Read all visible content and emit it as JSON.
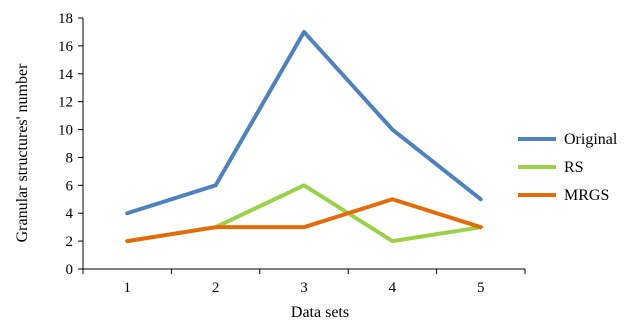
{
  "chart_data": {
    "type": "line",
    "x": [
      1,
      2,
      3,
      4,
      5
    ],
    "categories": [
      "1",
      "2",
      "3",
      "4",
      "5"
    ],
    "series": [
      {
        "name": "Original",
        "values": [
          4,
          6,
          17,
          10,
          5
        ],
        "color": "#4F81BD"
      },
      {
        "name": "RS",
        "values": [
          2,
          3,
          6,
          2,
          3
        ],
        "color": "#9BD14A"
      },
      {
        "name": "MRGS",
        "values": [
          2,
          3,
          3,
          5,
          3
        ],
        "color": "#E36C0A"
      }
    ],
    "title": "",
    "xlabel": "Data sets",
    "ylabel": "Granular structures' number",
    "ylim": [
      0,
      18
    ],
    "yticks": [
      0,
      2,
      4,
      6,
      8,
      10,
      12,
      14,
      16,
      18
    ],
    "grid": false,
    "legend_position": "right"
  }
}
